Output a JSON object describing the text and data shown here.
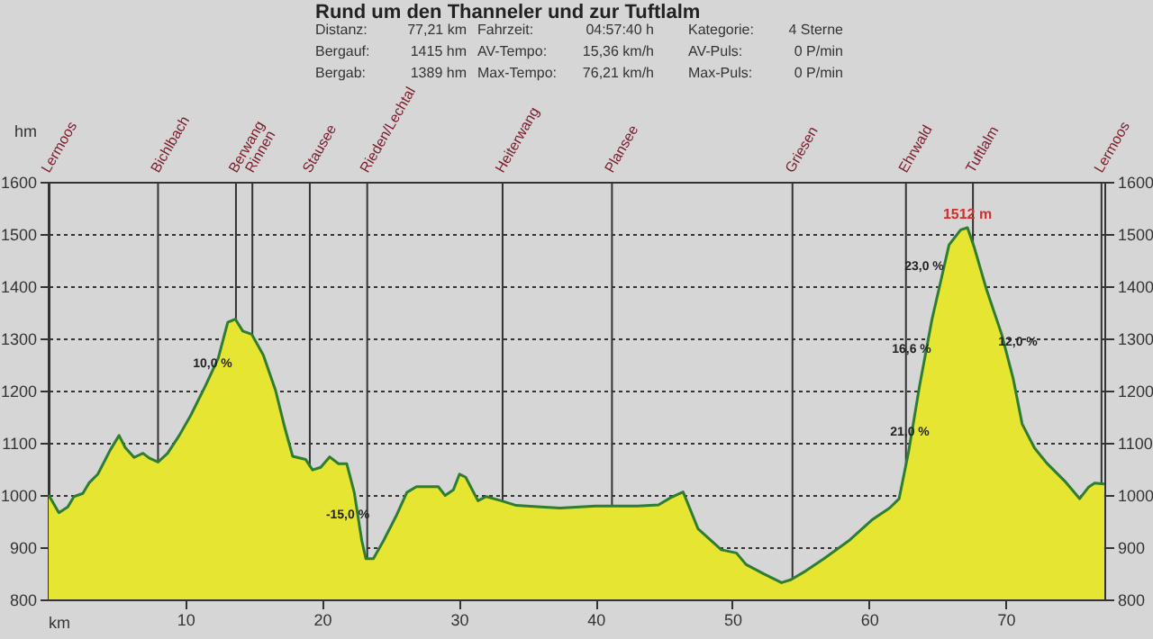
{
  "chart_data": {
    "type": "area",
    "title": "Rund um den Thanneler und zur Tuftlalm",
    "xlabel": "km",
    "ylabel": "hm",
    "series": [
      {
        "color": "#e6e632",
        "x": [
          0,
          0.75,
          1.4,
          1.85,
          2.5,
          2.95,
          3.6,
          4.5,
          5.15,
          5.6,
          6.25,
          6.9,
          7.35,
          8.0,
          8.7,
          9.55,
          10.4,
          11.5,
          12.4,
          13.1,
          13.65,
          14.2,
          14.85,
          15.7,
          16.6,
          17.25,
          17.85,
          18.8,
          19.3,
          19.9,
          20.55,
          21.2,
          21.8,
          22.35,
          22.9,
          23.2,
          23.75,
          24.5,
          25.4,
          26.2,
          26.9,
          28.5,
          29.0,
          29.6,
          30.05,
          30.5,
          31.4,
          32.0,
          33.1,
          34.2,
          36.0,
          37.4,
          40.0,
          43.1,
          44.6,
          45.5,
          46.4,
          47.5,
          49.2,
          50.3,
          51.0,
          52.3,
          53.6,
          54.3,
          55.4,
          56.7,
          58.5,
          60.2,
          61.5,
          62.2,
          62.9,
          63.7,
          64.6,
          65.3,
          65.85,
          66.7,
          67.2,
          67.7,
          68.6,
          69.7,
          70.55,
          71.2,
          72.1,
          73.0,
          74.3,
          75.4,
          76.05,
          76.5,
          77.2
        ],
        "values": [
          1000,
          966,
          977,
          997,
          1003,
          1023,
          1040,
          1086,
          1114,
          1091,
          1072,
          1080,
          1071,
          1063,
          1080,
          1114,
          1153,
          1211,
          1262,
          1331,
          1337,
          1314,
          1308,
          1268,
          1200,
          1131,
          1074,
          1068,
          1048,
          1053,
          1073,
          1060,
          1060,
          1005,
          913,
          878,
          878,
          913,
          959,
          1005,
          1016,
          1016,
          999,
          1010,
          1040,
          1034,
          989,
          997,
          989,
          980,
          977,
          975,
          979,
          979,
          981,
          995,
          1006,
          935,
          895,
          889,
          867,
          849,
          832,
          838,
          855,
          878,
          912,
          952,
          975,
          993,
          1084,
          1210,
          1336,
          1416,
          1479,
          1508,
          1512,
          1474,
          1393,
          1308,
          1222,
          1136,
          1090,
          1061,
          1027,
          993,
          1015,
          1023,
          1021
        ]
      }
    ],
    "xlim": [
      0,
      77.21
    ],
    "xticks": [
      10,
      20,
      30,
      40,
      50,
      60,
      70
    ],
    "ylim": [
      800,
      1600
    ],
    "yticks": [
      800,
      900,
      1000,
      1100,
      1200,
      1300,
      1400,
      1500,
      1600
    ],
    "y2lim": [
      800,
      1600
    ],
    "y2ticks": [
      800,
      900,
      1000,
      1100,
      1200,
      1300,
      1400,
      1500,
      1600
    ],
    "grid": "y",
    "ref_lines": [
      {
        "axis": "x",
        "value": 0,
        "label": "Lermoos",
        "color": "#333333"
      },
      {
        "axis": "x",
        "value": 8.0,
        "label": "Bichlbach",
        "color": "#333333"
      },
      {
        "axis": "x",
        "value": 13.7,
        "label": "Berwang",
        "color": "#333333"
      },
      {
        "axis": "x",
        "value": 14.9,
        "label": "Rinnen",
        "color": "#333333"
      },
      {
        "axis": "x",
        "value": 19.1,
        "label": "Stausee",
        "color": "#333333"
      },
      {
        "axis": "x",
        "value": 23.3,
        "label": "Rieden/Lechtal",
        "color": "#333333"
      },
      {
        "axis": "x",
        "value": 33.2,
        "label": "Heiterwang",
        "color": "#333333"
      },
      {
        "axis": "x",
        "value": 41.2,
        "label": "Plansee",
        "color": "#333333"
      },
      {
        "axis": "x",
        "value": 54.4,
        "label": "Griesen",
        "color": "#333333"
      },
      {
        "axis": "x",
        "value": 62.7,
        "label": "Ehrwald",
        "color": "#333333"
      },
      {
        "axis": "x",
        "value": 67.6,
        "label": "Tuftlalm",
        "color": "#333333"
      },
      {
        "axis": "x",
        "value": 77.0,
        "label": "Lermoos",
        "color": "#333333"
      }
    ],
    "annotations": [
      "Distanz:",
      "77,21 km",
      "Fahrzeit:",
      "04:57:40 h",
      "Kategorie:",
      "4 Sterne",
      "Bergauf:",
      "1415 hm",
      "AV-Tempo:",
      "15,36 km/h",
      "AV-Puls:",
      "0 P/min",
      "Bergab:",
      "1389 hm",
      "Max-Tempo:",
      "76,21 km/h",
      "Max-Puls:",
      "0 P/min",
      "10,0 %",
      "-15,0 %",
      "23,0 %",
      "16,6 %",
      "12,0 %",
      "21,0 %",
      {
        "text": "1512 m",
        "x": 67.2,
        "y": 1512
      }
    ]
  }
}
